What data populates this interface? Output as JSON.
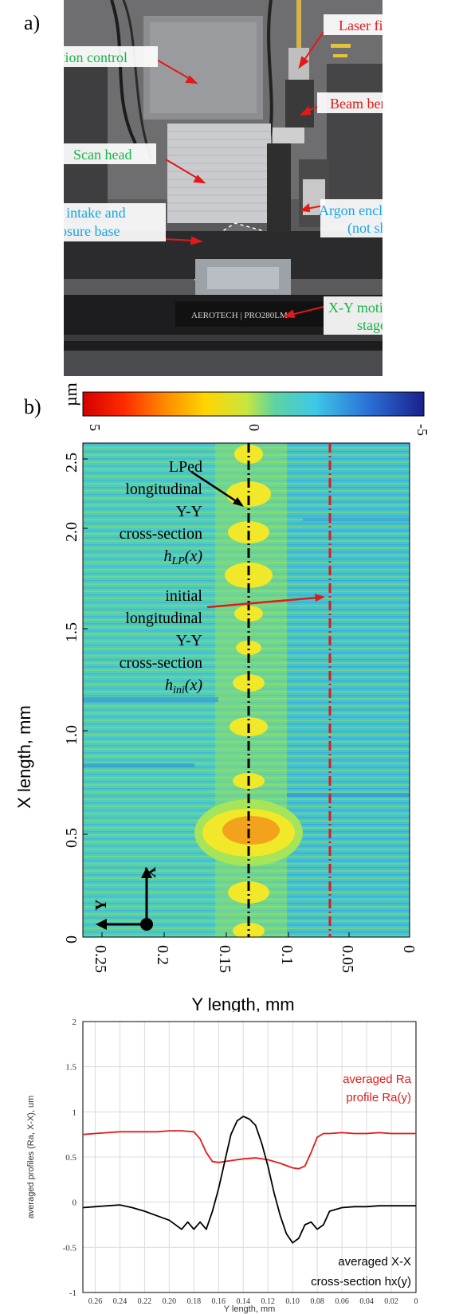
{
  "figure": {
    "panel_a_label": "a)",
    "panel_b_label": "b)"
  },
  "photo": {
    "labels": {
      "laser_fiber": "Laser fiber",
      "z_motion": "Z motion control",
      "beam_bender": "Beam bender",
      "scan_head": "Scan head",
      "argon_enclosure_1": "Argon enclosure",
      "argon_enclosure_2": "(not shown)",
      "argon_intake_1": "Argon intake and",
      "argon_intake_2": "enclosure base",
      "xy_stage_1": "X-Y motion",
      "xy_stage_2": "stage"
    },
    "stage_brand": "AEROTECH | PRO280LM"
  },
  "colorbar": {
    "unit": "µm",
    "ticks": [
      "5",
      "0",
      "-5"
    ],
    "colors": [
      "#d40000",
      "#ff6a00",
      "#ffd500",
      "#c8e640",
      "#5fd3a0",
      "#3ec8e8",
      "#2a6fd6",
      "#1a1f8a"
    ]
  },
  "map": {
    "xlabel": "Y length,  mm",
    "ylabel": "X length, mm",
    "xticks": [
      "0.25",
      "0.2",
      "0.15",
      "0.1",
      "0.05",
      "0"
    ],
    "yticks": [
      "0",
      "0.5",
      "1.0",
      "1.5",
      "2.0",
      "2.5"
    ],
    "annotations": {
      "lped_1": "LPed",
      "lped_2": "longitudinal",
      "lped_3": "Y-Y",
      "lped_4": "cross-section",
      "lped_5_main": "h",
      "lped_5_sub": "LP",
      "lped_5_tail": "(x)",
      "ini_1": "initial",
      "ini_2": "longitudinal",
      "ini_3": "Y-Y",
      "ini_4": "cross-section",
      "ini_5_main": "h",
      "ini_5_sub": "ini",
      "ini_5_tail": "(x)"
    },
    "axis_glyphs": {
      "x": "X",
      "y": "Y"
    }
  },
  "chart_data": {
    "type": "line",
    "xlabel": "Y length, mm",
    "ylabel": "averaged profiles (Ra, X-X), um",
    "xlim": [
      0.27,
      0.0
    ],
    "ylim": [
      -1,
      2
    ],
    "xticks": [
      "0.26",
      "0.24",
      "0.22",
      "0.20",
      "0.18",
      "0.16",
      "0.14",
      "0.12",
      "0.10",
      "0.08",
      "0.06",
      "0.04",
      "0.02",
      "0"
    ],
    "yticks": [
      "-1",
      "-0.5",
      "0",
      "0.5",
      "1",
      "1.5",
      "2"
    ],
    "grid": true,
    "annotation_ra_1": "averaged Ra",
    "annotation_ra_2": "profile Ra(y)",
    "annotation_hx_1": "averaged X-X",
    "annotation_hx_2": "cross-section hx(y)",
    "series": [
      {
        "name": "averaged Ra profile Ra(y)",
        "color": "#e31919",
        "x": [
          0.27,
          0.26,
          0.25,
          0.24,
          0.23,
          0.22,
          0.21,
          0.2,
          0.19,
          0.18,
          0.175,
          0.17,
          0.165,
          0.16,
          0.15,
          0.14,
          0.13,
          0.12,
          0.11,
          0.1,
          0.095,
          0.09,
          0.085,
          0.08,
          0.075,
          0.07,
          0.06,
          0.05,
          0.04,
          0.03,
          0.02,
          0.01,
          0.0
        ],
        "values": [
          0.75,
          0.76,
          0.77,
          0.78,
          0.78,
          0.78,
          0.78,
          0.79,
          0.79,
          0.78,
          0.7,
          0.55,
          0.45,
          0.44,
          0.46,
          0.48,
          0.49,
          0.47,
          0.43,
          0.38,
          0.37,
          0.4,
          0.55,
          0.72,
          0.76,
          0.76,
          0.77,
          0.76,
          0.76,
          0.77,
          0.76,
          0.76,
          0.76
        ]
      },
      {
        "name": "averaged X-X cross-section hx(y)",
        "color": "#000000",
        "x": [
          0.27,
          0.26,
          0.25,
          0.24,
          0.23,
          0.22,
          0.21,
          0.2,
          0.19,
          0.185,
          0.18,
          0.175,
          0.17,
          0.165,
          0.16,
          0.155,
          0.15,
          0.145,
          0.14,
          0.135,
          0.13,
          0.125,
          0.12,
          0.115,
          0.11,
          0.105,
          0.1,
          0.095,
          0.09,
          0.085,
          0.08,
          0.075,
          0.07,
          0.06,
          0.05,
          0.04,
          0.03,
          0.02,
          0.01,
          0.0
        ],
        "values": [
          -0.06,
          -0.05,
          -0.04,
          -0.03,
          -0.06,
          -0.1,
          -0.15,
          -0.2,
          -0.3,
          -0.22,
          -0.3,
          -0.22,
          -0.3,
          -0.1,
          0.15,
          0.45,
          0.75,
          0.9,
          0.95,
          0.92,
          0.85,
          0.65,
          0.4,
          0.1,
          -0.15,
          -0.35,
          -0.45,
          -0.4,
          -0.25,
          -0.22,
          -0.3,
          -0.25,
          -0.1,
          -0.06,
          -0.05,
          -0.05,
          -0.04,
          -0.04,
          -0.04,
          -0.04
        ]
      }
    ]
  }
}
